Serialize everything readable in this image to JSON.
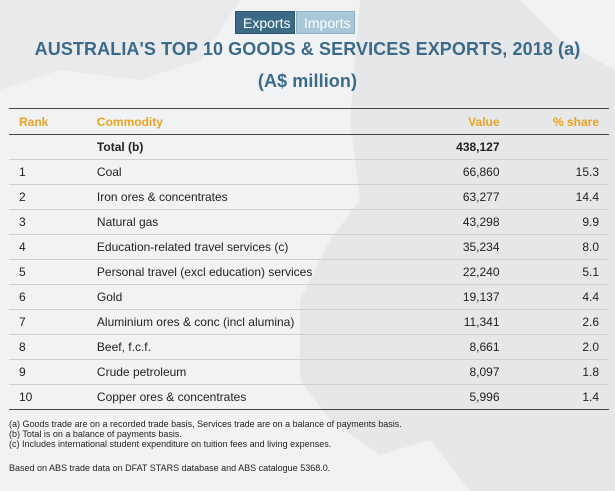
{
  "toggle": {
    "exports_label": "Exports",
    "imports_label": "Imports",
    "active": "Exports"
  },
  "title_line1": "AUSTRALIA'S TOP 10 GOODS & SERVICES EXPORTS, 2018 (a)",
  "title_line2": "(A$ million)",
  "columns": [
    "Rank",
    "Commodity",
    "Value",
    "% share"
  ],
  "total_row": {
    "rank": "",
    "commodity": "Total (b)",
    "value": "438,127",
    "share": ""
  },
  "rows": [
    {
      "rank": "1",
      "commodity": "Coal",
      "value": "66,860",
      "share": "15.3"
    },
    {
      "rank": "2",
      "commodity": "Iron ores & concentrates",
      "value": "63,277",
      "share": "14.4"
    },
    {
      "rank": "3",
      "commodity": "Natural gas",
      "value": "43,298",
      "share": "9.9"
    },
    {
      "rank": "4",
      "commodity": "Education-related travel services (c)",
      "value": "35,234",
      "share": "8.0"
    },
    {
      "rank": "5",
      "commodity": "Personal travel (excl education) services",
      "value": "22,240",
      "share": "5.1"
    },
    {
      "rank": "6",
      "commodity": "Gold",
      "value": "19,137",
      "share": "4.4"
    },
    {
      "rank": "7",
      "commodity": "Aluminium ores & conc (incl alumina)",
      "value": "11,341",
      "share": "2.6"
    },
    {
      "rank": "8",
      "commodity": "Beef, f.c.f.",
      "value": "8,661",
      "share": "2.0"
    },
    {
      "rank": "9",
      "commodity": "Crude petroleum",
      "value": "8,097",
      "share": "1.8"
    },
    {
      "rank": "10",
      "commodity": "Copper ores & concentrates",
      "value": "5,996",
      "share": "1.4"
    }
  ],
  "notes": [
    "(a) Goods trade are on a recorded trade basis, Services trade are on a balance of payments basis.",
    "(b) Total is on a balance of payments basis.",
    "(c) Includes international student expenditure on tuition fees and living expenses."
  ],
  "source": "Based on ABS trade data on DFAT STARS database and ABS catalogue 5368.0.",
  "colors": {
    "title": "#3c6b89",
    "header_text": "#e8a420",
    "tab_active": "#3b6a86",
    "tab_inactive": "#a9c7d6",
    "background": "#f1f2f3"
  },
  "chart_data": {
    "type": "table",
    "title": "AUSTRALIA'S TOP 10 GOODS & SERVICES EXPORTS, 2018 (a)",
    "subtitle": "(A$ million)",
    "columns": [
      "Rank",
      "Commodity",
      "Value",
      "% share"
    ],
    "total": {
      "label": "Total (b)",
      "value": 438127
    },
    "records": [
      {
        "rank": 1,
        "commodity": "Coal",
        "value": 66860,
        "share": 15.3
      },
      {
        "rank": 2,
        "commodity": "Iron ores & concentrates",
        "value": 63277,
        "share": 14.4
      },
      {
        "rank": 3,
        "commodity": "Natural gas",
        "value": 43298,
        "share": 9.9
      },
      {
        "rank": 4,
        "commodity": "Education-related travel services (c)",
        "value": 35234,
        "share": 8.0
      },
      {
        "rank": 5,
        "commodity": "Personal travel (excl education) services",
        "value": 22240,
        "share": 5.1
      },
      {
        "rank": 6,
        "commodity": "Gold",
        "value": 19137,
        "share": 4.4
      },
      {
        "rank": 7,
        "commodity": "Aluminium ores & conc (incl alumina)",
        "value": 11341,
        "share": 2.6
      },
      {
        "rank": 8,
        "commodity": "Beef, f.c.f.",
        "value": 8661,
        "share": 2.0
      },
      {
        "rank": 9,
        "commodity": "Crude petroleum",
        "value": 8097,
        "share": 1.8
      },
      {
        "rank": 10,
        "commodity": "Copper ores & concentrates",
        "value": 5996,
        "share": 1.4
      }
    ]
  }
}
